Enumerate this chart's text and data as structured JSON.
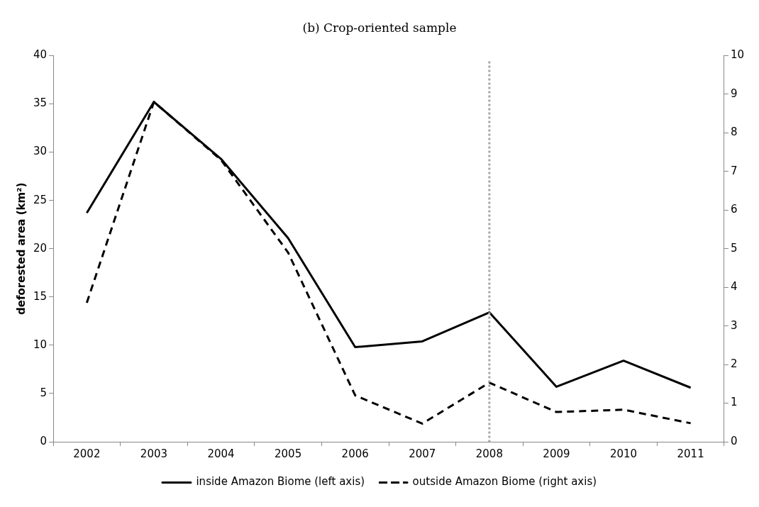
{
  "chart_data": {
    "type": "line",
    "title": "(b) Crop-oriented sample",
    "ylabel": "deforested area (km²)",
    "categories": [
      "2002",
      "2003",
      "2004",
      "2005",
      "2006",
      "2007",
      "2008",
      "2009",
      "2010",
      "2011"
    ],
    "series": [
      {
        "name": "inside Amazon Biome (left axis)",
        "color": "#000000",
        "line_style": "solid",
        "values": [
          23.7,
          35.2,
          29.3,
          21.1,
          9.8,
          10.4,
          13.4,
          5.7,
          8.4,
          5.6
        ]
      },
      {
        "name": "outside Amazon Biome (right axis)",
        "color": "#000000",
        "line_style": "dashed",
        "axis": "y2",
        "values": [
          3.6,
          8.8,
          7.3,
          4.9,
          1.2,
          0.47,
          1.53,
          0.77,
          0.83,
          0.48
        ]
      }
    ],
    "ylim": [
      0,
      40
    ],
    "yticks": [
      0,
      5,
      10,
      15,
      20,
      25,
      30,
      35,
      40
    ],
    "y2lim": [
      0,
      10
    ],
    "y2ticks": [
      0,
      1,
      2,
      3,
      4,
      5,
      6,
      7,
      8,
      9,
      10
    ],
    "ref_lines": [
      {
        "axis": "x",
        "value": "2008",
        "color": "#a6a6a6",
        "line_style": "dotted"
      }
    ],
    "grid": false,
    "legend": "bottom",
    "marker": "none"
  }
}
